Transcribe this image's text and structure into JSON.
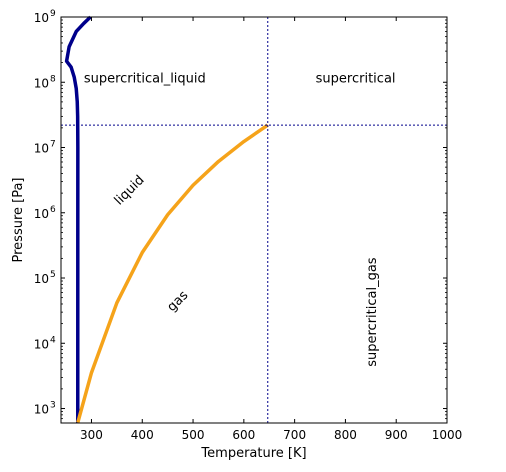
{
  "chart_data": {
    "type": "line",
    "xlabel": "Temperature [K]",
    "ylabel": "Pressure [Pa]",
    "xlim": [
      240,
      1000
    ],
    "ylim": [
      600,
      1000000000
    ],
    "yscale": "log",
    "x_ticks": [
      300,
      400,
      500,
      600,
      700,
      800,
      900,
      1000
    ],
    "y_ticks": [
      {
        "value": 1000,
        "base": "10",
        "exp": "3"
      },
      {
        "value": 10000,
        "base": "10",
        "exp": "4"
      },
      {
        "value": 100000,
        "base": "10",
        "exp": "5"
      },
      {
        "value": 1000000,
        "base": "10",
        "exp": "6"
      },
      {
        "value": 10000000,
        "base": "10",
        "exp": "7"
      },
      {
        "value": 100000000,
        "base": "10",
        "exp": "8"
      },
      {
        "value": 1000000000,
        "base": "10",
        "exp": "9"
      }
    ],
    "series": [
      {
        "color": "#00008b",
        "x": [
          273,
          273.1,
          273.15,
          272.8,
          272.0,
          270.0,
          266.0,
          260.0,
          251.0,
          256.0,
          270.0,
          285.0,
          298.0
        ],
        "y": [
          600,
          1000000,
          10000000,
          30000000,
          50000000,
          80000000,
          120000000,
          170000000,
          210000000,
          350000000,
          600000000,
          800000000,
          1000000000
        ]
      },
      {
        "color": "#f5a31a",
        "x": [
          273.16,
          300,
          350,
          400,
          450,
          500,
          550,
          600,
          647.1
        ],
        "y": [
          611.7,
          3537,
          41680,
          245800,
          932000,
          2639000,
          6117000,
          12350000,
          22064000
        ]
      }
    ],
    "critical_point": {
      "T": 647.1,
      "P": 22064000,
      "color": "#00008b"
    },
    "grid": false,
    "region_labels": [
      {
        "text": "supercritical_liquid",
        "x": 405,
        "y": 100000000,
        "rotation": 0
      },
      {
        "text": "supercritical",
        "x": 820,
        "y": 100000000,
        "rotation": 0
      },
      {
        "text": "liquid",
        "x": 380,
        "y": 2000000,
        "rotation": -45
      },
      {
        "text": "gas",
        "x": 475,
        "y": 40000,
        "rotation": -45
      },
      {
        "text": "supercritical_gas",
        "x": 860,
        "y": 30000,
        "rotation": -90
      }
    ]
  }
}
